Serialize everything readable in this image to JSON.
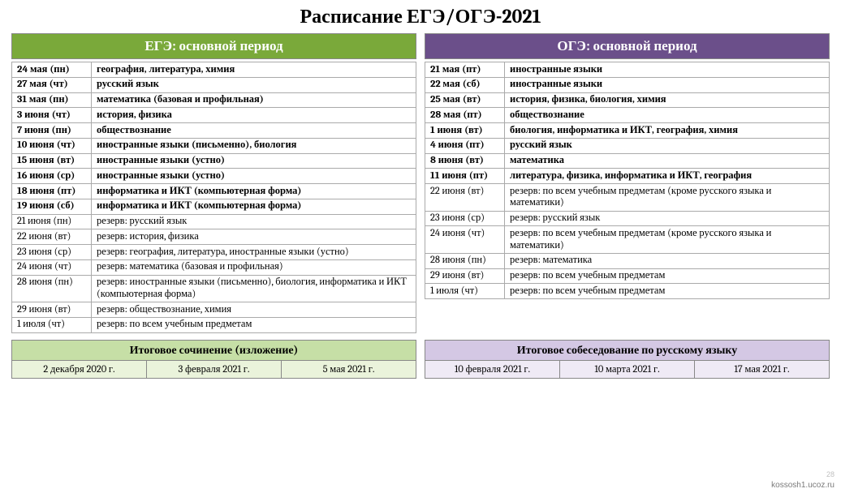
{
  "title": "Расписание ЕГЭ/ОГЭ-2021",
  "left": {
    "header": "ЕГЭ: основной период",
    "header_bg": "#7aa93a",
    "header_text": "#ffffff",
    "rows": [
      {
        "b": true,
        "date": "24 мая (пн)",
        "subj": "география, литература, химия"
      },
      {
        "b": true,
        "date": "27 мая (чт)",
        "subj": "русский язык"
      },
      {
        "b": true,
        "date": "31 мая (пн)",
        "subj": "математика  (базовая и профильная)"
      },
      {
        "b": true,
        "date": "3 июня (чт)",
        "subj": "история, физика"
      },
      {
        "b": true,
        "date": "7 июня (пн)",
        "subj": "обществознание"
      },
      {
        "b": true,
        "date": "10 июня (чт)",
        "subj": "иностранные языки (письменно), биология"
      },
      {
        "b": true,
        "date": "15 июня (вт)",
        "subj": "иностранные языки (устно)"
      },
      {
        "b": true,
        "date": "16 июня (ср)",
        "subj": "иностранные языки (устно)"
      },
      {
        "b": true,
        "date": "18 июня (пт)",
        "subj": "информатика и ИКТ (компьютерная форма)"
      },
      {
        "b": true,
        "date": "19 июня (сб)",
        "subj": "информатика и ИКТ (компьютерная форма)"
      },
      {
        "b": false,
        "date": "21 июня (пн)",
        "subj": "резерв:  русский язык"
      },
      {
        "b": false,
        "date": "22 июня (вт)",
        "subj": "резерв: история, физика"
      },
      {
        "b": false,
        "date": "23 июня (ср)",
        "subj": "резерв: география, литература, иностранные языки (устно)"
      },
      {
        "b": false,
        "date": "24 июня (чт)",
        "subj": "резерв: математика (базовая и профильная)"
      },
      {
        "b": false,
        "date": "28 июня (пн)",
        "subj": "резерв: иностранные языки (письменно), биология, информатика и ИКТ (компьютерная форма)"
      },
      {
        "b": false,
        "date": "29 июня (вт)",
        "subj": "резерв: обществознание, химия"
      },
      {
        "b": false,
        "date": "1 июля (чт)",
        "subj": "резерв: по всем учебным предметам"
      }
    ]
  },
  "right": {
    "header": "ОГЭ: основной период",
    "header_bg": "#6b4f8a",
    "header_text": "#ffffff",
    "rows": [
      {
        "b": true,
        "date": "21 мая (пт)",
        "subj": "иностранные языки"
      },
      {
        "b": true,
        "date": "22 мая (сб)",
        "subj": "иностранные языки"
      },
      {
        "b": true,
        "date": "25 мая (вт)",
        "subj": "история, физика, биология, химия"
      },
      {
        "b": true,
        "date": "28 мая (пт)",
        "subj": "обществознание"
      },
      {
        "b": true,
        "date": "1 июня (вт)",
        "subj": "биология, информатика и ИКТ, география, химия"
      },
      {
        "b": true,
        "date": "4 июня (пт)",
        "subj": "русский язык"
      },
      {
        "b": true,
        "date": "8 июня (вт)",
        "subj": "математика"
      },
      {
        "b": true,
        "date": "11 июня (пт)",
        "subj": "литература, физика, информатика и ИКТ, география"
      },
      {
        "b": false,
        "date": "22 июня (вт)",
        "subj": "резерв: по всем учебным предметам (кроме русского языка и математики)"
      },
      {
        "b": false,
        "date": "23 июня (ср)",
        "subj": "резерв: русский язык"
      },
      {
        "b": false,
        "date": "24 июня (чт)",
        "subj": "резерв: по всем учебным предметам (кроме русского языка и математики)"
      },
      {
        "b": false,
        "date": "28 июня (пн)",
        "subj": "резерв: математика"
      },
      {
        "b": false,
        "date": "29 июня (вт)",
        "subj": "резерв: по всем учебным предметам"
      },
      {
        "b": false,
        "date": "1 июля (чт)",
        "subj": "резерв: по всем учебным предметам"
      }
    ]
  },
  "bottom_left": {
    "header": "Итоговое сочинение (изложение)",
    "header_bg": "#c6dfa6",
    "cell_bg": "#eaf3db",
    "cells": [
      "2 декабря 2020 г.",
      "3 февраля 2021 г.",
      "5 мая 2021 г."
    ]
  },
  "bottom_right": {
    "header": "Итоговое собеседование по русскому языку",
    "header_bg": "#d4c8e4",
    "cell_bg": "#efeaf5",
    "cells": [
      "10 февраля 2021 г.",
      "10 марта 2021 г.",
      "17 мая 2021 г."
    ]
  },
  "footer": "kossosh1.ucoz.ru",
  "pagenum": "28"
}
